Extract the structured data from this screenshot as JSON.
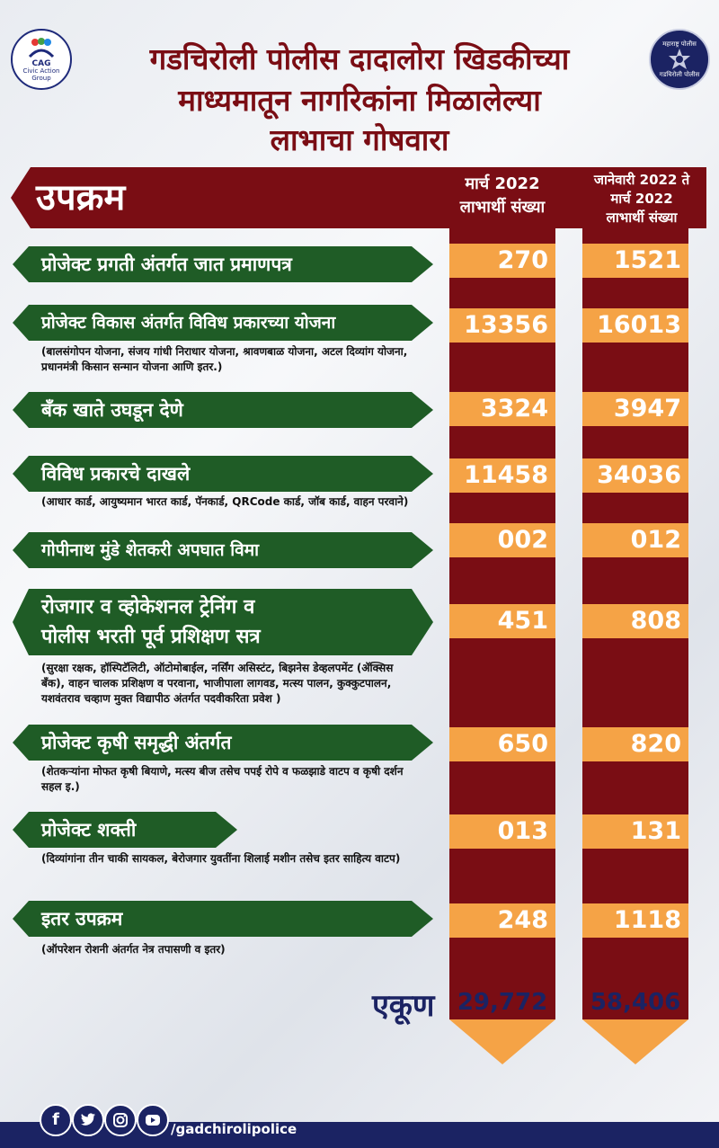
{
  "title": {
    "line1": "गडचिरोली पोलीस दादालोरा खिडकीच्या",
    "line2": "माध्यमातून नागरिकांना मिळालेल्या",
    "line3": "लाभाचा गोषवारा"
  },
  "logo_left": {
    "name": "CAG",
    "subtitle": "Civic Action Group"
  },
  "logo_right": {
    "line1": "महाराष्ट्र पोलीस",
    "line2": "गडचिरोली पोलीस"
  },
  "header": {
    "label": "उपक्रम",
    "col1_line1": "मार्च 2022",
    "col1_line2": "लाभार्थी संख्या",
    "col2_line1": "जानेवारी 2022 ते",
    "col2_line2": "मार्च 2022",
    "col2_line3": "लाभार्थी संख्या"
  },
  "rows": [
    {
      "label": "प्रोजेक्ट प्रगती अंतर्गत जात प्रमाणपत्र",
      "sub": "",
      "march": "270",
      "jan_mar": "1521"
    },
    {
      "label": "प्रोजेक्ट विकास अंतर्गत विविध प्रकारच्या योजना",
      "sub": "(बालसंगोपन योजना, संजय गांधी निराधार योजना, श्रावणबाळ योजना, अटल दिव्यांग योजना, प्रधानमंत्री किसान सन्मान योजना आणि इतर.)",
      "march": "13356",
      "jan_mar": "16013"
    },
    {
      "label": "बँक खाते उघडून देणे",
      "sub": "",
      "march": "3324",
      "jan_mar": "3947"
    },
    {
      "label": "विविध प्रकारचे दाखले",
      "sub": "(आधार कार्ड, आयुष्यमान भारत कार्ड, पॅनकार्ड, QRCode कार्ड, जॉब कार्ड, वाहन परवाने)",
      "march": "11458",
      "jan_mar": "34036"
    },
    {
      "label": "गोपीनाथ मुंडे शेतकरी अपघात विमा",
      "sub": "",
      "march": "002",
      "jan_mar": "012"
    },
    {
      "label_line1": "रोजगार व व्होकेशनल ट्रेनिंग व",
      "label_line2": "पोलीस भरती पूर्व प्रशिक्षण सत्र",
      "sub": "(सुरक्षा रक्षक, हॉस्पिटॅलिटी, ऑटोमोबाईल, नर्सिंग असिस्टंट, बिझनेस डेव्हलपमेंट (ॲक्सिस बँक), वाहन चालक प्रशिक्षण व परवाना, भाजीपाला लागवड, मत्स्य पालन, कुक्कुटपालन, यशवंतराव चव्हाण मुक्त विद्यापीठ अंतर्गत पदवीकरिता प्रवेश )",
      "march": "451",
      "jan_mar": "808"
    },
    {
      "label": "प्रोजेक्ट कृषी समृद्धी अंतर्गत",
      "sub": "(शेतकऱ्यांना मोफत कृषी बियाणे, मत्स्य बीज तसेच पपई रोपे व फळझाडे वाटप व कृषी दर्शन सहल इ.)",
      "march": "650",
      "jan_mar": "820"
    },
    {
      "label": "प्रोजेक्ट शक्ती",
      "sub": "(दिव्यांगांना तीन चाकी सायकल, बेरोजगार युवतींना शिलाई मशीन तसेच इतर साहित्य वाटप)",
      "march": "013",
      "jan_mar": "131"
    },
    {
      "label": "इतर उपक्रम",
      "sub": "(ऑपरेशन रोशनी अंतर्गत नेत्र तपासणी व इतर)",
      "march": "248",
      "jan_mar": "1118"
    }
  ],
  "total": {
    "label": "एकूण",
    "march": "29,772",
    "jan_mar": "58,406"
  },
  "footer": {
    "handle": "/gadchirolipolice",
    "icons": [
      "facebook-icon",
      "twitter-icon",
      "instagram-icon",
      "youtube-icon"
    ]
  },
  "colors": {
    "maroon": "#7a0d14",
    "orange": "#f5a346",
    "green": "#1f5c26",
    "navy": "#1b2363"
  }
}
